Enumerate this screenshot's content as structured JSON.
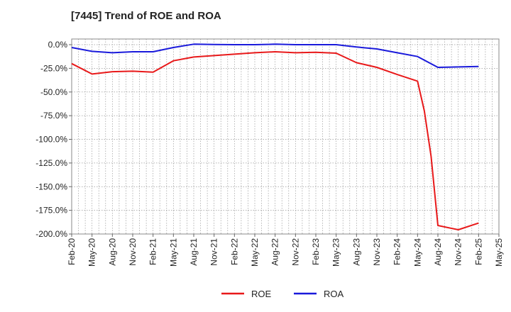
{
  "chart_data": {
    "type": "line",
    "title": "[7445]  Trend of ROE and ROA",
    "xlabel": "",
    "ylabel": "",
    "ylim": [
      -200,
      0
    ],
    "grid": true,
    "legend_position": "bottom",
    "x_ticks": [
      "Feb-20",
      "May-20",
      "Aug-20",
      "Nov-20",
      "Feb-21",
      "May-21",
      "Aug-21",
      "Nov-21",
      "Feb-22",
      "May-22",
      "Aug-22",
      "Nov-22",
      "Feb-23",
      "May-23",
      "Aug-23",
      "Nov-23",
      "Feb-24",
      "May-24",
      "Aug-24",
      "Nov-24",
      "Feb-25",
      "May-25"
    ],
    "y_ticks": [
      "0.0%",
      "-25.0%",
      "-50.0%",
      "-75.0%",
      "-100.0%",
      "-125.0%",
      "-150.0%",
      "-175.0%",
      "-200.0%"
    ],
    "y_tick_values": [
      0,
      -25,
      -50,
      -75,
      -100,
      -125,
      -150,
      -175,
      -200
    ],
    "series": [
      {
        "name": "ROE",
        "color": "#e8191a",
        "x": [
          "Feb-20",
          "May-20",
          "Aug-20",
          "Nov-20",
          "Feb-21",
          "May-21",
          "Aug-21",
          "Nov-21",
          "Feb-22",
          "May-22",
          "Aug-22",
          "Nov-22",
          "Feb-23",
          "May-23",
          "Aug-23",
          "Nov-23",
          "Feb-24",
          "May-24",
          "Jun-24",
          "Jul-24",
          "Aug-24",
          "Nov-24",
          "Feb-25"
        ],
        "values": [
          -20.0,
          -31.0,
          -28.5,
          -28.0,
          -29.0,
          -17.0,
          -13.0,
          -11.5,
          -10.0,
          -8.5,
          -7.5,
          -8.5,
          -8.0,
          -9.0,
          -19.0,
          -24.0,
          -31.5,
          -38.5,
          -70.0,
          -118.0,
          -191.0,
          -195.5,
          -188.5
        ]
      },
      {
        "name": "ROA",
        "color": "#1a1adb",
        "x": [
          "Feb-20",
          "May-20",
          "Aug-20",
          "Nov-20",
          "Feb-21",
          "May-21",
          "Aug-21",
          "Nov-21",
          "Feb-22",
          "May-22",
          "Aug-22",
          "Nov-22",
          "Feb-23",
          "May-23",
          "Aug-23",
          "Nov-23",
          "Feb-24",
          "May-24",
          "Aug-24",
          "Nov-24",
          "Feb-25"
        ],
        "values": [
          -3.0,
          -7.0,
          -8.5,
          -7.5,
          -7.5,
          -3.0,
          0.5,
          0.2,
          0.0,
          0.0,
          0.5,
          0.0,
          0.0,
          0.0,
          -2.5,
          -4.5,
          -8.5,
          -12.5,
          -24.0,
          -23.5,
          -23.0
        ]
      }
    ]
  }
}
